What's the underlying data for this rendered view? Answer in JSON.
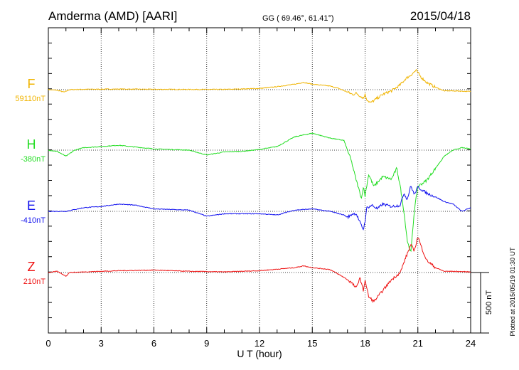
{
  "chart_data": {
    "type": "line",
    "title": "Amderma (AMD)  [AARI]",
    "coords": "GG ( 69.46°,  61.41°)",
    "date": "2015/04/18",
    "xlabel": "U T (hour)",
    "x_ticks": [
      "0",
      "3",
      "6",
      "9",
      "12",
      "15",
      "18",
      "21",
      "24"
    ],
    "xlim": [
      0,
      24
    ],
    "scale_bar_label": "500 nT",
    "scale_bar_nT": 500,
    "plotted_note": "Plotted at 2015/05/19 01:30 UT",
    "grid": true,
    "series": [
      {
        "name": "F",
        "baseline_label": "59110nT",
        "color": "#f0b400",
        "hours": [
          0,
          0.5,
          0.9,
          1.2,
          2,
          4,
          6,
          8,
          10,
          12,
          13,
          14,
          14.5,
          15,
          16,
          16.5,
          17,
          17.3,
          17.5,
          17.7,
          17.9,
          18,
          18.1,
          18.3,
          18.5,
          19,
          19.5,
          20,
          20.3,
          20.6,
          20.9,
          21.2,
          21.5,
          22,
          22.5,
          23,
          24
        ],
        "values": [
          0,
          -5,
          -20,
          0,
          3,
          5,
          3,
          2,
          2,
          10,
          25,
          45,
          60,
          45,
          30,
          10,
          -20,
          -40,
          -30,
          -50,
          -70,
          -40,
          -80,
          -110,
          -90,
          -40,
          -10,
          40,
          90,
          120,
          160,
          100,
          60,
          20,
          -10,
          -10,
          -15
        ]
      },
      {
        "name": "H",
        "baseline_label": "-380nT",
        "color": "#22dd22",
        "hours": [
          0,
          0.5,
          1,
          1.5,
          2,
          3,
          4,
          6,
          8,
          9,
          10,
          11,
          12,
          13,
          14,
          15,
          16,
          16.8,
          17.2,
          17.5,
          17.8,
          17.9,
          18,
          18.2,
          18.5,
          19,
          19.5,
          19.8,
          20,
          20.2,
          20.4,
          20.6,
          20.8,
          21,
          21.5,
          22,
          22.5,
          23,
          23.5,
          24
        ],
        "values": [
          0,
          -10,
          -50,
          0,
          20,
          30,
          40,
          10,
          0,
          -40,
          -15,
          -10,
          5,
          30,
          110,
          140,
          100,
          80,
          -80,
          -250,
          -400,
          -300,
          -380,
          -200,
          -300,
          -220,
          -240,
          -150,
          -300,
          -500,
          -750,
          -850,
          -500,
          -300,
          -250,
          -150,
          -50,
          0,
          20,
          10
        ]
      },
      {
        "name": "E",
        "baseline_label": "-410nT",
        "color": "#1010ee",
        "hours": [
          0,
          1,
          2,
          3,
          4,
          5,
          6,
          8,
          9,
          10,
          12,
          13,
          14,
          15,
          16,
          16.8,
          17,
          17.3,
          17.5,
          17.7,
          17.9,
          18,
          18.1,
          18.4,
          18.7,
          19,
          19.5,
          20,
          20.2,
          20.4,
          20.6,
          20.8,
          21,
          21.5,
          22,
          22.5,
          23,
          23.5,
          24
        ],
        "values": [
          0,
          0,
          30,
          40,
          60,
          50,
          20,
          10,
          -40,
          -20,
          -20,
          -30,
          10,
          20,
          0,
          -30,
          -50,
          -20,
          -20,
          -90,
          -150,
          -80,
          30,
          50,
          20,
          60,
          40,
          50,
          150,
          100,
          210,
          140,
          200,
          150,
          120,
          80,
          60,
          0,
          30
        ]
      },
      {
        "name": "Z",
        "baseline_label": "210nT",
        "color": "#ee1111",
        "hours": [
          0,
          0.5,
          1,
          1.2,
          2,
          4,
          6,
          8,
          10,
          12,
          14,
          14.5,
          15,
          16,
          16.8,
          17.2,
          17.5,
          17.7,
          17.9,
          18,
          18.2,
          18.5,
          19,
          19.5,
          20,
          20.3,
          20.6,
          20.8,
          21,
          21.2,
          21.5,
          22,
          22.5,
          23,
          24
        ],
        "values": [
          0,
          10,
          -30,
          0,
          5,
          15,
          20,
          10,
          5,
          15,
          40,
          55,
          40,
          25,
          -40,
          -80,
          -130,
          -40,
          -150,
          -60,
          -200,
          -240,
          -150,
          -60,
          0,
          120,
          230,
          180,
          300,
          210,
          100,
          40,
          10,
          10,
          5
        ]
      }
    ]
  }
}
